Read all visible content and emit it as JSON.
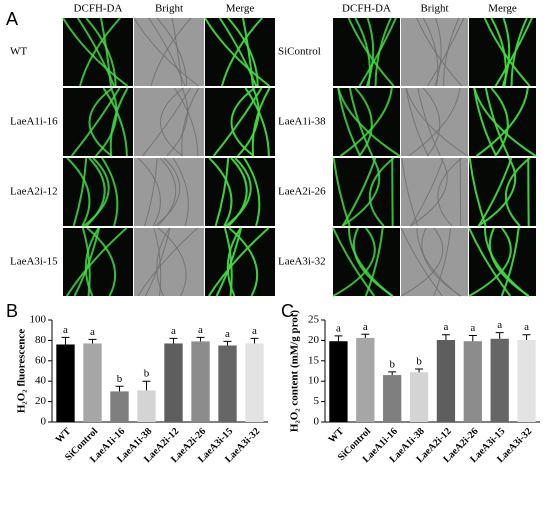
{
  "panel_a": {
    "label": "A",
    "groups": [
      {
        "columns": [
          "DCFH-DA",
          "Bright",
          "Merge"
        ],
        "rows": [
          "WT",
          "LaeA1i-16",
          "LaeA2i-12",
          "LaeA3i-15"
        ]
      },
      {
        "columns": [
          "DCFH-DA",
          "Bright",
          "Merge"
        ],
        "rows": [
          "SiControl",
          "LaeA1i-38",
          "LaeA2i-26",
          "LaeA3i-32"
        ]
      }
    ]
  },
  "chart_data": [
    {
      "type": "bar",
      "panel_label": "B",
      "y_label": "H₂O₂ fluorescence",
      "categories": [
        "WT",
        "SiControl",
        "LaeA1i-16",
        "LaeA1i-38",
        "LaeA2i-12",
        "LaeA2i-26",
        "LaeA3i-15",
        "LaeA3i-32"
      ],
      "values": [
        76,
        77,
        30,
        31,
        77,
        79,
        75,
        77
      ],
      "errors": [
        7,
        4,
        5,
        9,
        5,
        4,
        4,
        5
      ],
      "annotations": [
        "a",
        "a",
        "b",
        "b",
        "a",
        "a",
        "a",
        "a"
      ],
      "colors": [
        "#000000",
        "#a6a6a6",
        "#7f7f7f",
        "#d4d4d4",
        "#5e5e5e",
        "#8c8c8c",
        "#666666",
        "#e3e3e3"
      ],
      "ylim": [
        0,
        100
      ],
      "yticks": [
        0,
        20,
        40,
        60,
        80,
        100
      ]
    },
    {
      "type": "bar",
      "panel_label": "C",
      "y_label": "H₂O₂ content (mM/g prot)",
      "categories": [
        "WT",
        "SiControl",
        "LaeA1i-16",
        "LaeA1i-38",
        "LaeA2i-12",
        "LaeA2i-26",
        "LaeA3i-15",
        "LaeA3i-32"
      ],
      "values": [
        19.8,
        20.6,
        11.5,
        12.2,
        20.1,
        19.8,
        20.4,
        20.1
      ],
      "errors": [
        1.3,
        0.9,
        0.8,
        0.8,
        1.3,
        1.4,
        1.5,
        1.3
      ],
      "annotations": [
        "a",
        "a",
        "b",
        "b",
        "a",
        "a",
        "a",
        "a"
      ],
      "colors": [
        "#000000",
        "#a6a6a6",
        "#7f7f7f",
        "#d4d4d4",
        "#5e5e5e",
        "#8c8c8c",
        "#666666",
        "#e3e3e3"
      ],
      "ylim": [
        0,
        25
      ],
      "yticks": [
        0,
        5,
        10,
        15,
        20,
        25
      ]
    }
  ]
}
